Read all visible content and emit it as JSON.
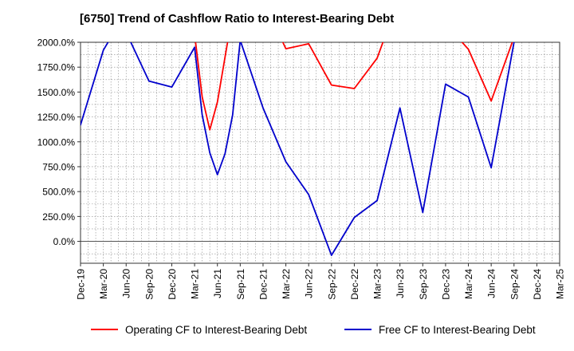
{
  "chart_data": {
    "type": "line",
    "title": "[6750]  Trend of Cashflow Ratio to Interest-Bearing Debt",
    "xlabel": "",
    "ylabel": "",
    "x_ticks": [
      "Dec-19",
      "Mar-20",
      "Jun-20",
      "Sep-20",
      "Dec-20",
      "Mar-21",
      "Jun-21",
      "Sep-21",
      "Dec-21",
      "Mar-22",
      "Jun-22",
      "Sep-22",
      "Dec-22",
      "Mar-23",
      "Jun-23",
      "Sep-23",
      "Dec-23",
      "Mar-24",
      "Jun-24",
      "Sep-24",
      "Dec-24",
      "Mar-25"
    ],
    "y_ticks": [
      "2000.0%",
      "1750.0%",
      "1500.0%",
      "1250.0%",
      "1000.0%",
      "750.0%",
      "500.0%",
      "250.0%",
      "0.0%"
    ],
    "ylim": [
      -220,
      2000
    ],
    "ylim_clipped": true,
    "grid": true,
    "legend_position": "bottom",
    "series": [
      {
        "name": "Operating CF to Interest-Bearing Debt",
        "color": "#ff0000",
        "points": [
          {
            "x": "Mar-21",
            "y": 2080
          },
          {
            "x": "Apr-21",
            "y": 1450
          },
          {
            "x": "May-21",
            "y": 1120
          },
          {
            "x": "Jun-21",
            "y": 1400
          },
          {
            "x": "Jul-21",
            "y": 1850
          },
          {
            "x": "Aug-21",
            "y": 2300
          },
          {
            "x": null,
            "y": null
          },
          {
            "x": "Feb-22",
            "y": 2100
          },
          {
            "x": "Mar-22",
            "y": 1935
          },
          {
            "x": "Jun-22",
            "y": 1985
          },
          {
            "x": "Sep-22",
            "y": 1570
          },
          {
            "x": "Dec-22",
            "y": 1535
          },
          {
            "x": "Mar-23",
            "y": 1840
          },
          {
            "x": "Apr-23",
            "y": 2050
          },
          {
            "x": null,
            "y": null
          },
          {
            "x": "Jan-24",
            "y": 2100
          },
          {
            "x": "Mar-24",
            "y": 1930
          },
          {
            "x": "Jun-24",
            "y": 1410
          },
          {
            "x": "Sep-24",
            "y": 2050
          }
        ]
      },
      {
        "name": "Free CF to Interest-Bearing Debt",
        "color": "#0000cc",
        "points": [
          {
            "x": "Dec-19",
            "y": 1170
          },
          {
            "x": "Mar-20",
            "y": 1920
          },
          {
            "x": "Apr-20",
            "y": 2050
          },
          {
            "x": null,
            "y": null
          },
          {
            "x": "Jun-20",
            "y": 2100
          },
          {
            "x": "Sep-20",
            "y": 1610
          },
          {
            "x": "Dec-20",
            "y": 1550
          },
          {
            "x": "Mar-21",
            "y": 1950
          },
          {
            "x": "Apr-21",
            "y": 1270
          },
          {
            "x": "May-21",
            "y": 890
          },
          {
            "x": "Jun-21",
            "y": 670
          },
          {
            "x": "Jul-21",
            "y": 880
          },
          {
            "x": "Aug-21",
            "y": 1270
          },
          {
            "x": "Sep-21",
            "y": 2020
          },
          {
            "x": "Dec-21",
            "y": 1340
          },
          {
            "x": "Mar-22",
            "y": 800
          },
          {
            "x": "Jun-22",
            "y": 470
          },
          {
            "x": "Sep-22",
            "y": -140
          },
          {
            "x": "Dec-22",
            "y": 240
          },
          {
            "x": "Mar-23",
            "y": 410
          },
          {
            "x": "Jun-23",
            "y": 1340
          },
          {
            "x": "Sep-23",
            "y": 290
          },
          {
            "x": "Dec-23",
            "y": 1580
          },
          {
            "x": "Mar-24",
            "y": 1450
          },
          {
            "x": "Jun-24",
            "y": 740
          },
          {
            "x": "Sep-24",
            "y": 2000
          }
        ]
      }
    ]
  }
}
